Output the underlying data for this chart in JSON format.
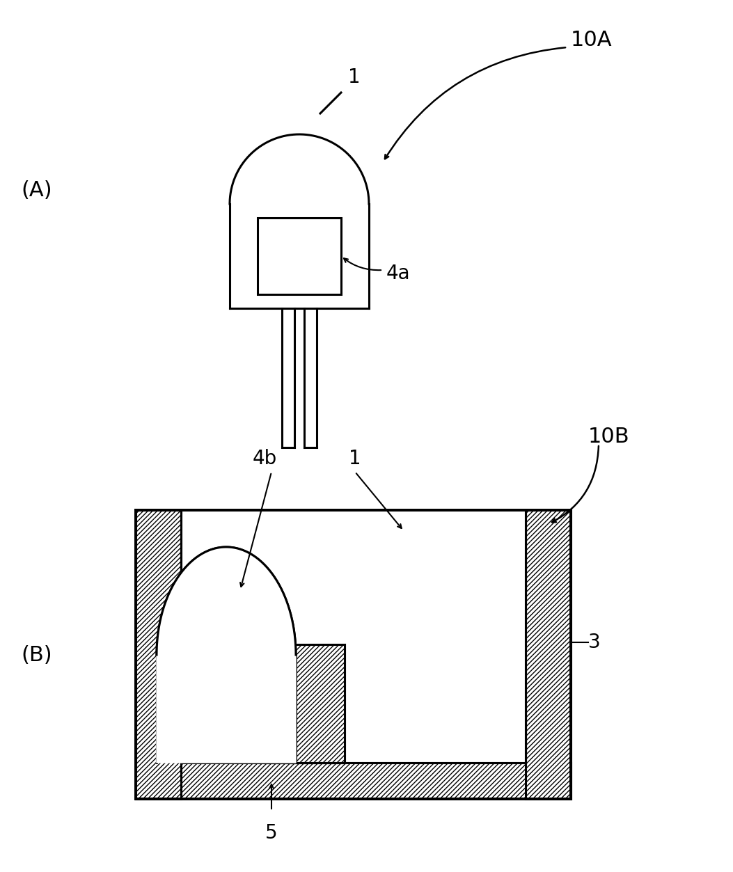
{
  "bg_color": "#ffffff",
  "line_color": "#000000",
  "label_A": "(A)",
  "label_B": "(B)",
  "label_10A": "10A",
  "label_10B": "10B",
  "label_1_A": "1",
  "label_1_B": "1",
  "label_4a": "4a",
  "label_4b": "4b",
  "label_3": "3",
  "label_5": "5",
  "lw": 2.2
}
